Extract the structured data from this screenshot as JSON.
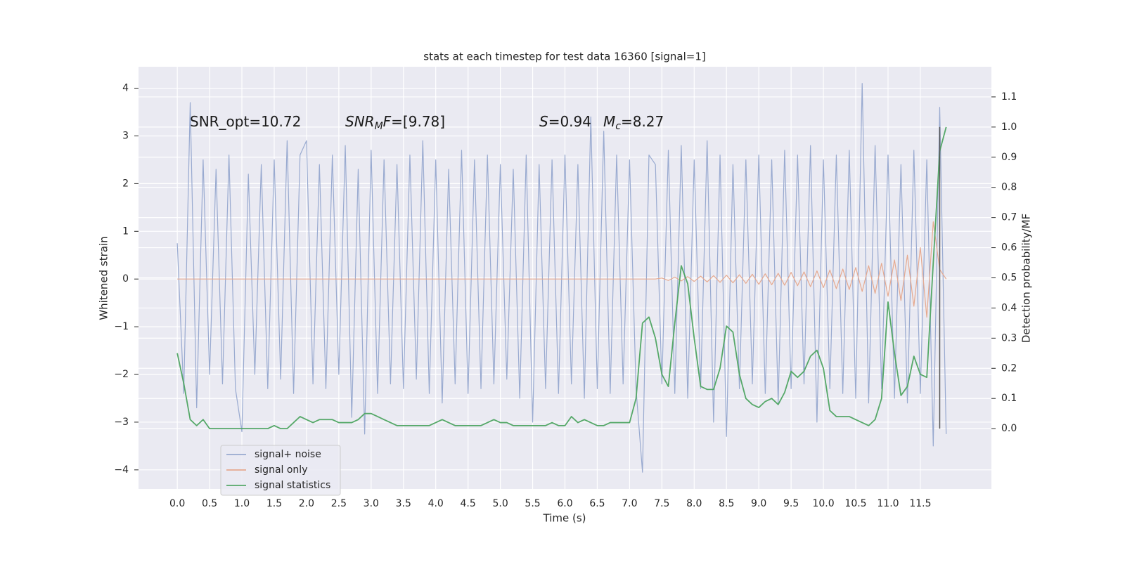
{
  "chart_data": {
    "type": "line",
    "title": "stats at each timestep for test data 16360 [signal=1]",
    "x_label": "Time (s)",
    "y_label": "Whitened strain",
    "y2_label": "Detection probability/MF",
    "annotations": [
      [
        {
          "text": "SNR_opt=10.72"
        }
      ],
      [
        {
          "text": "SNR",
          "italic": true
        },
        {
          "text": "M",
          "italic": true,
          "sub": true
        },
        {
          "text": "F",
          "italic": true
        },
        {
          "text": "=[9.78]"
        }
      ],
      [
        {
          "text": "S",
          "italic": true
        },
        {
          "text": "=0.94"
        }
      ],
      [
        {
          "text": "M",
          "italic": true
        },
        {
          "text": "c",
          "italic": true,
          "sub": true
        },
        {
          "text": "=8.27"
        }
      ]
    ],
    "grid": true,
    "legend": "lower left",
    "xlim": [
      -0.6,
      12.6
    ],
    "ylim": [
      -4.4,
      4.45
    ],
    "y2lim": [
      -0.2,
      1.2
    ],
    "xticks": [
      {
        "value": 0,
        "label": "0.0"
      },
      0.5,
      {
        "value": 1,
        "label": "1.0"
      },
      1.5,
      {
        "value": 2,
        "label": "2.0"
      },
      2.5,
      {
        "value": 3,
        "label": "3.0"
      },
      3.5,
      {
        "value": 4,
        "label": "4.0"
      },
      4.5,
      {
        "value": 5,
        "label": "5.0"
      },
      5.5,
      {
        "value": 6,
        "label": "6.0"
      },
      6.5,
      {
        "value": 7,
        "label": "7.0"
      },
      7.5,
      {
        "value": 8,
        "label": "8.0"
      },
      8.5,
      {
        "value": 9,
        "label": "9.0"
      },
      9.5,
      {
        "value": 10,
        "label": "10.0"
      },
      10.5,
      {
        "value": 11,
        "label": "11.0"
      },
      11.5
    ],
    "yticks": [
      {
        "value": -4,
        "label": "−4"
      },
      {
        "value": -3,
        "label": "−3"
      },
      {
        "value": -2,
        "label": "−2"
      },
      {
        "value": -1,
        "label": "−1"
      },
      0,
      1,
      2,
      3,
      4
    ],
    "y2ticks": [
      {
        "value": 0,
        "label": "0.0"
      },
      0.1,
      0.2,
      0.3,
      0.4,
      0.5,
      0.6,
      0.7,
      0.8,
      0.9,
      {
        "value": 1,
        "label": "1.0"
      },
      1.1
    ],
    "x": [
      0,
      0.1,
      0.2,
      0.3,
      0.4,
      0.5,
      0.6,
      0.7,
      0.8,
      0.9,
      1,
      1.1,
      1.2,
      1.3,
      1.4,
      1.5,
      1.6,
      1.7,
      1.8,
      1.9,
      2,
      2.1,
      2.2,
      2.3,
      2.4,
      2.5,
      2.6,
      2.7,
      2.8,
      2.9,
      3,
      3.1,
      3.2,
      3.3,
      3.4,
      3.5,
      3.6,
      3.7,
      3.8,
      3.9,
      4,
      4.1,
      4.2,
      4.3,
      4.4,
      4.5,
      4.6,
      4.7,
      4.8,
      4.9,
      5,
      5.1,
      5.2,
      5.3,
      5.4,
      5.5,
      5.6,
      5.7,
      5.8,
      5.9,
      6,
      6.1,
      6.2,
      6.3,
      6.4,
      6.5,
      6.6,
      6.7,
      6.8,
      6.9,
      7,
      7.1,
      7.2,
      7.3,
      7.4,
      7.5,
      7.6,
      7.7,
      7.8,
      7.9,
      8,
      8.1,
      8.2,
      8.3,
      8.4,
      8.5,
      8.6,
      8.7,
      8.8,
      8.9,
      9,
      9.1,
      9.2,
      9.3,
      9.4,
      9.5,
      9.6,
      9.7,
      9.8,
      9.9,
      10,
      10.1,
      10.2,
      10.3,
      10.4,
      10.5,
      10.6,
      10.7,
      10.8,
      10.9,
      11,
      11.1,
      11.2,
      11.3,
      11.4,
      11.5,
      11.6,
      11.7,
      11.8,
      11.9
    ],
    "series": [
      {
        "name": "signal+ noise",
        "color": "#99aad0",
        "values": [
          0.75,
          -2.4,
          3.7,
          -2.7,
          2.5,
          -2.0,
          2.3,
          -2.2,
          2.6,
          -2.3,
          -3.2,
          2.2,
          -2.0,
          2.4,
          -2.3,
          2.5,
          -2.1,
          2.9,
          -2.4,
          2.6,
          2.9,
          -2.2,
          2.4,
          -2.3,
          2.6,
          -2.0,
          2.8,
          -2.9,
          2.3,
          -3.25,
          2.7,
          -2.4,
          2.5,
          -2.2,
          2.4,
          -2.3,
          2.6,
          -2.1,
          2.9,
          -2.4,
          2.5,
          -2.6,
          2.3,
          -2.2,
          2.7,
          -2.4,
          2.5,
          -2.3,
          2.6,
          -2.2,
          2.4,
          -2.1,
          2.3,
          -2.5,
          2.6,
          -3.0,
          2.4,
          -2.3,
          2.5,
          -2.4,
          2.6,
          -2.2,
          2.4,
          -2.5,
          3.4,
          -2.3,
          3.1,
          -2.4,
          2.6,
          -2.2,
          2.5,
          -2.3,
          -4.05,
          2.6,
          2.4,
          -2.2,
          2.7,
          -2.4,
          2.8,
          -2.5,
          2.5,
          -2.3,
          2.9,
          -3.0,
          2.6,
          -3.3,
          2.4,
          -2.3,
          2.5,
          -2.2,
          2.6,
          -2.4,
          2.5,
          -2.6,
          2.7,
          -2.3,
          2.6,
          -2.2,
          2.8,
          -3.0,
          2.5,
          -2.3,
          2.6,
          -2.4,
          2.7,
          -2.5,
          4.1,
          -2.6,
          2.8,
          -2.3,
          2.6,
          -2.5,
          2.4,
          -2.6,
          2.7,
          -2.4,
          2.5,
          -3.5,
          3.6,
          -3.25
        ]
      },
      {
        "name": "signal only",
        "color": "#e6a98f",
        "values": [
          0,
          0,
          0,
          0,
          0,
          0,
          0,
          0,
          0,
          0,
          0,
          0,
          0,
          0,
          0,
          0,
          0,
          0,
          0,
          0,
          0,
          0,
          0,
          0,
          0,
          0,
          0,
          0,
          0,
          0,
          0,
          0,
          0,
          0,
          0,
          0,
          0,
          0,
          0,
          0,
          0,
          0,
          0,
          0,
          0,
          0,
          0,
          0,
          0,
          0,
          0,
          0,
          0,
          0,
          0,
          0,
          0,
          0,
          0,
          0,
          0,
          0,
          0,
          0,
          0,
          0,
          0,
          0,
          0,
          0,
          0,
          0,
          0,
          0,
          0,
          0.02,
          -0.03,
          0.04,
          -0.04,
          0.05,
          -0.05,
          0.06,
          -0.06,
          0.07,
          -0.07,
          0.08,
          -0.08,
          0.09,
          -0.09,
          0.1,
          -0.11,
          0.11,
          -0.12,
          0.12,
          -0.13,
          0.14,
          -0.14,
          0.15,
          -0.16,
          0.17,
          -0.18,
          0.19,
          -0.2,
          0.21,
          -0.22,
          0.24,
          -0.26,
          0.28,
          -0.3,
          0.33,
          -0.36,
          0.4,
          -0.45,
          0.5,
          -0.57,
          0.66,
          -0.8,
          1.2,
          0.2,
          0
        ]
      },
      {
        "name": "signal statistics",
        "color": "#55a868",
        "axis": "y2",
        "values": [
          0.25,
          0.15,
          0.03,
          0.01,
          0.03,
          0,
          0,
          0,
          0,
          0,
          0,
          0,
          0,
          0,
          0,
          0.01,
          0,
          0,
          0.02,
          0.04,
          0.03,
          0.02,
          0.03,
          0.03,
          0.03,
          0.02,
          0.02,
          0.02,
          0.03,
          0.05,
          0.05,
          0.04,
          0.03,
          0.02,
          0.01,
          0.01,
          0.01,
          0.01,
          0.01,
          0.01,
          0.02,
          0.03,
          0.02,
          0.01,
          0.01,
          0.01,
          0.01,
          0.01,
          0.02,
          0.03,
          0.02,
          0.02,
          0.01,
          0.01,
          0.01,
          0.01,
          0.01,
          0.01,
          0.02,
          0.01,
          0.01,
          0.04,
          0.02,
          0.03,
          0.02,
          0.01,
          0.01,
          0.02,
          0.02,
          0.02,
          0.02,
          0.1,
          0.35,
          0.37,
          0.3,
          0.18,
          0.14,
          0.35,
          0.54,
          0.48,
          0.3,
          0.14,
          0.13,
          0.13,
          0.2,
          0.34,
          0.32,
          0.18,
          0.1,
          0.08,
          0.07,
          0.09,
          0.1,
          0.08,
          0.12,
          0.19,
          0.17,
          0.19,
          0.24,
          0.26,
          0.2,
          0.06,
          0.04,
          0.04,
          0.04,
          0.03,
          0.02,
          0.01,
          0.03,
          0.1,
          0.42,
          0.25,
          0.11,
          0.14,
          0.24,
          0.18,
          0.17,
          0.55,
          0.92,
          1.0
        ]
      }
    ],
    "vlines": [
      {
        "x": 11.8,
        "ymin": 0,
        "ymax": 1,
        "axis": "y2",
        "color": "#555555"
      }
    ]
  }
}
